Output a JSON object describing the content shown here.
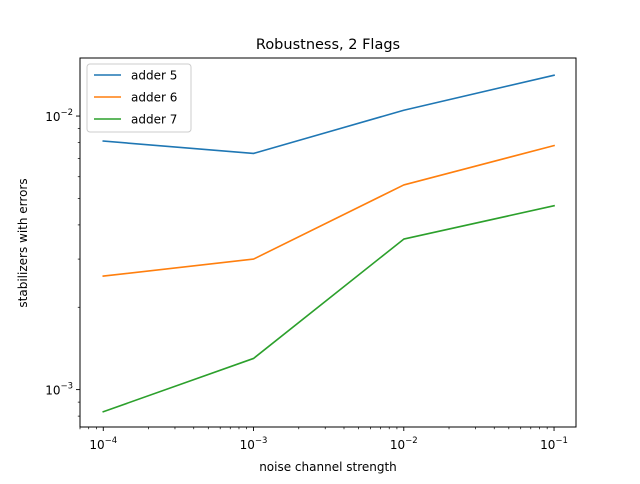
{
  "chart_data": {
    "type": "line",
    "title": "Robustness, 2 Flags",
    "xlabel": "noise channel strength",
    "ylabel": "stabilizers with errors",
    "xscale": "log",
    "yscale": "log",
    "xlim": [
      7e-05,
      0.14
    ],
    "ylim": [
      0.00073,
      0.0163
    ],
    "x": [
      0.0001,
      0.001,
      0.01,
      0.1
    ],
    "x_ticks": [
      {
        "value": 0.0001,
        "base": "10",
        "exp": "−4"
      },
      {
        "value": 0.001,
        "base": "10",
        "exp": "−3"
      },
      {
        "value": 0.01,
        "base": "10",
        "exp": "−2"
      },
      {
        "value": 0.1,
        "base": "10",
        "exp": "−1"
      }
    ],
    "y_ticks": [
      {
        "value": 0.001,
        "base": "10",
        "exp": "−3"
      },
      {
        "value": 0.01,
        "base": "10",
        "exp": "−2"
      }
    ],
    "grid": false,
    "legend_position": "top-left",
    "series": [
      {
        "name": "adder 5",
        "color": "#1f77b4",
        "values": [
          0.0081,
          0.0073,
          0.0105,
          0.0141
        ]
      },
      {
        "name": "adder 6",
        "color": "#ff7f0e",
        "values": [
          0.0026,
          0.003,
          0.0056,
          0.0078
        ]
      },
      {
        "name": "adder 7",
        "color": "#2ca02c",
        "values": [
          0.00083,
          0.0013,
          0.00355,
          0.0047
        ]
      }
    ]
  }
}
